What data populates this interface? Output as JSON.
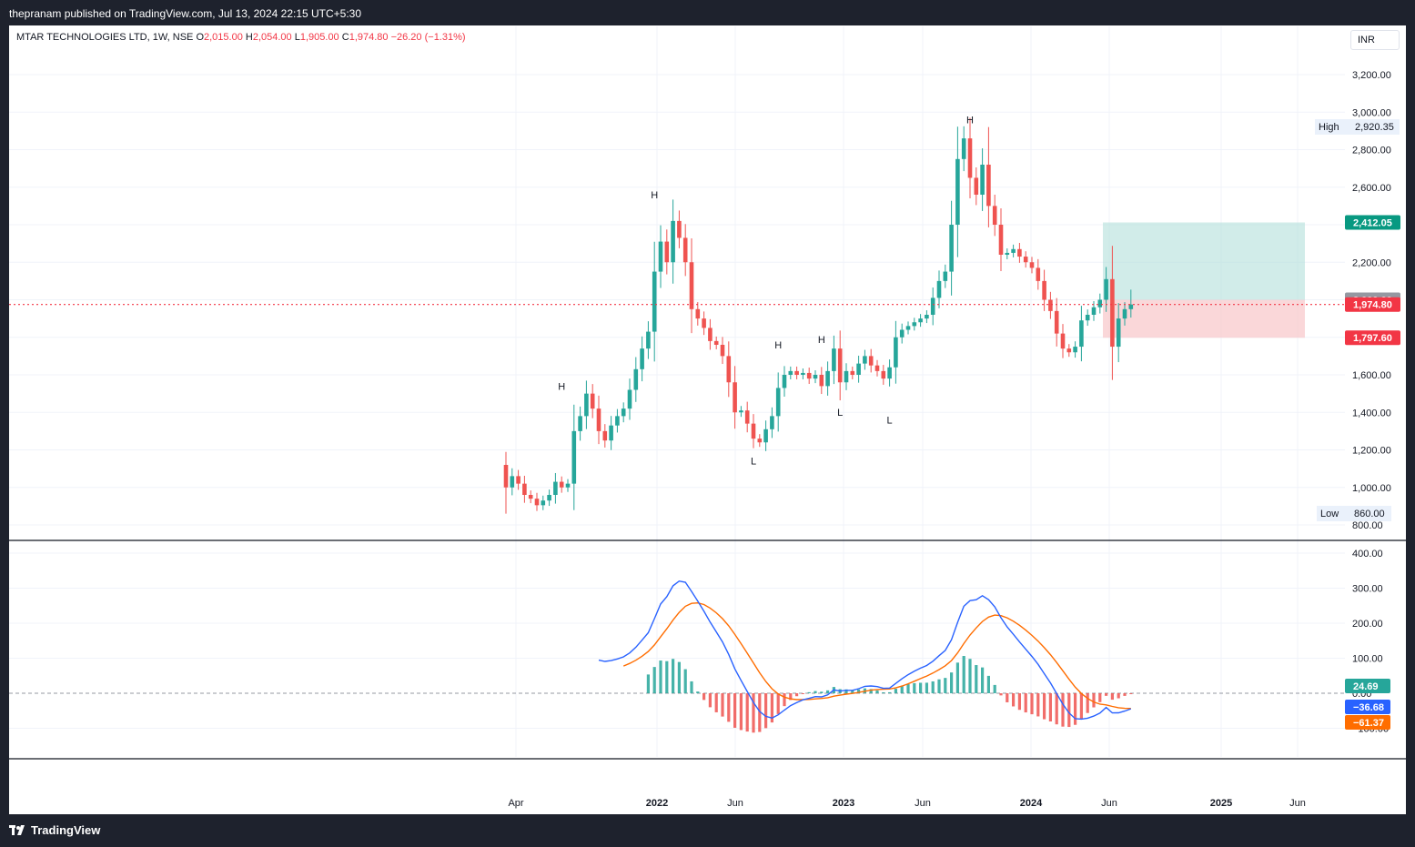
{
  "header": {
    "published": "thepranam published on TradingView.com, Jul 13, 2024 22:15 UTC+5:30"
  },
  "legend": {
    "symbol": "MTAR TECHNOLOGIES LTD, 1W, NSE",
    "o_label": "O",
    "o": "2,015.00",
    "h_label": "H",
    "h": "2,054.00",
    "l_label": "L",
    "l": "1,905.00",
    "c_label": "C",
    "c": "1,974.80",
    "change": "−26.20 (−1.31%)"
  },
  "currency": "INR",
  "footer": {
    "brand": "TradingView"
  },
  "colors": {
    "up": "#26a69a",
    "down": "#ef5350",
    "macd": "#2962ff",
    "signal": "#ff6d00",
    "hist_up": "#26a69a",
    "hist_down": "#ef5350",
    "target_zone": "#b2dfdb",
    "stop_zone": "#f8c9cc"
  },
  "chart_data": [
    {
      "type": "candlestick",
      "title": "MTAR TECHNOLOGIES LTD, 1W, NSE",
      "ylim": [
        800,
        3400
      ],
      "y_ticks": [
        "3,200.00",
        "3,000.00",
        "2,800.00",
        "2,600.00",
        "2,400.00",
        "2,200.00",
        "2,000.00",
        "1,800.00",
        "1,600.00",
        "1,400.00",
        "1,200.00",
        "1,000.00",
        "800.00"
      ],
      "x_ticks": [
        "Apr",
        "2022",
        "Jun",
        "2023",
        "Jun",
        "2024",
        "Jun",
        "2025",
        "Jun"
      ],
      "high_label": {
        "label": "High",
        "value": "2,920.35"
      },
      "low_label": {
        "label": "Low",
        "value": "860.00"
      },
      "price_badges": [
        {
          "value": "2,412.05",
          "kind": "target"
        },
        {
          "value": "2,000.00",
          "kind": "entry"
        },
        {
          "value": "1,974.80",
          "kind": "last"
        },
        {
          "value": "1,797.60",
          "kind": "stop"
        }
      ],
      "last_price": 1974.8,
      "position": {
        "entry": 2000,
        "target": 2412.05,
        "stop": 1797.6
      },
      "annotations": [
        {
          "text": "H",
          "price": 1540
        },
        {
          "text": "H",
          "price": 2560
        },
        {
          "text": "L",
          "price": 1180
        },
        {
          "text": "H",
          "price": 1760
        },
        {
          "text": "H",
          "price": 1790
        },
        {
          "text": "L",
          "price": 1440
        },
        {
          "text": "L",
          "price": 1400
        },
        {
          "text": "H",
          "price": 2960
        }
      ],
      "closes": [
        1000,
        1060,
        1020,
        960,
        940,
        905,
        930,
        960,
        1030,
        1000,
        1020,
        1300,
        1380,
        1500,
        1420,
        1300,
        1250,
        1330,
        1380,
        1420,
        1520,
        1630,
        1740,
        1830,
        2150,
        2310,
        2200,
        2420,
        2330,
        2200,
        1950,
        1900,
        1850,
        1780,
        1760,
        1700,
        1560,
        1400,
        1410,
        1340,
        1260,
        1240,
        1310,
        1380,
        1530,
        1600,
        1620,
        1600,
        1610,
        1580,
        1600,
        1540,
        1620,
        1740,
        1560,
        1620,
        1600,
        1660,
        1700,
        1650,
        1620,
        1580,
        1640,
        1800,
        1840,
        1860,
        1880,
        1900,
        1920,
        2010,
        2100,
        2150,
        2400,
        2750,
        2860,
        2650,
        2560,
        2720,
        2500,
        2400,
        2240,
        2250,
        2270,
        2230,
        2200,
        2170,
        2100,
        2000,
        1940,
        1820,
        1740,
        1720,
        1750,
        1890,
        1920,
        1960,
        2000,
        2110,
        1750,
        1900,
        1950,
        1974.8
      ],
      "macd": [],
      "macd_panel": {
        "y_ticks": [
          "400.00",
          "300.00",
          "200.00",
          "100.00",
          "0.00",
          "−100.00"
        ],
        "ylim": [
          -150,
          400
        ],
        "values": [
          {
            "name": "Histogram",
            "value": "24.69"
          },
          {
            "name": "MACD",
            "value": "−36.68"
          },
          {
            "name": "Signal",
            "value": "−61.37"
          }
        ]
      }
    }
  ]
}
